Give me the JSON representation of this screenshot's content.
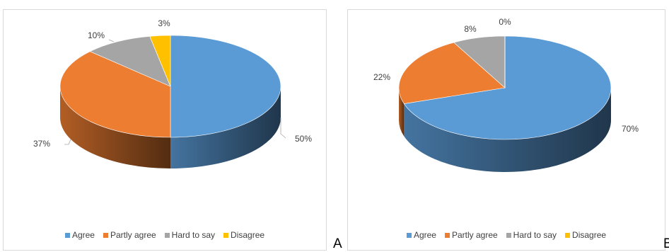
{
  "chart_data": [
    {
      "type": "pie",
      "style": "3d",
      "categories": [
        "Agree",
        "Partly agree",
        "Hard to say",
        "Disagree"
      ],
      "values": [
        50,
        37,
        10,
        3
      ],
      "data_labels": [
        "50%",
        "37%",
        "10%",
        "3%"
      ],
      "colors": [
        "#5b9bd5",
        "#ed7d31",
        "#a5a5a5",
        "#ffc000"
      ],
      "legend": [
        "Agree",
        "Partly agree",
        "Hard to say",
        "Disagree"
      ],
      "legend_position": "bottom",
      "caption": "A"
    },
    {
      "type": "pie",
      "style": "3d",
      "categories": [
        "Agree",
        "Partly agree",
        "Hard to say",
        "Disagree"
      ],
      "values": [
        70,
        22,
        8,
        0
      ],
      "data_labels": [
        "70%",
        "22%",
        "8%",
        "0%"
      ],
      "colors": [
        "#5b9bd5",
        "#ed7d31",
        "#a5a5a5",
        "#ffc000"
      ],
      "legend": [
        "Agree",
        "Partly agree",
        "Hard to say",
        "Disagree"
      ],
      "legend_position": "bottom",
      "caption": "B"
    }
  ]
}
